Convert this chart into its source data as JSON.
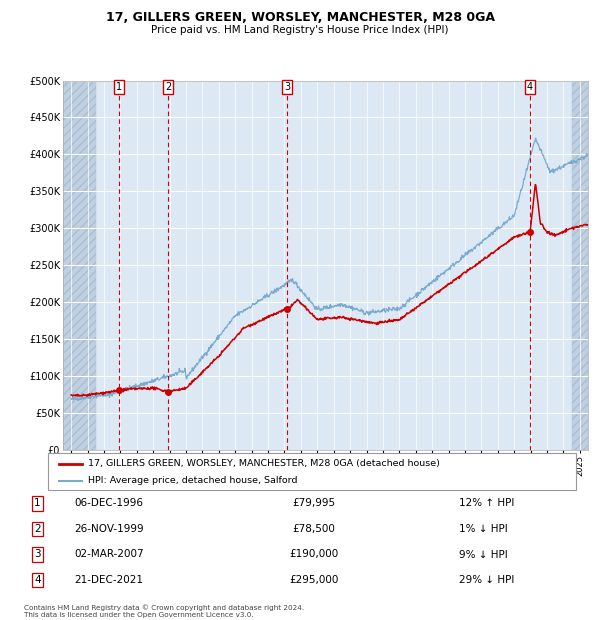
{
  "title": "17, GILLERS GREEN, WORSLEY, MANCHESTER, M28 0GA",
  "subtitle": "Price paid vs. HM Land Registry's House Price Index (HPI)",
  "background_color": "#dce9f5",
  "plot_bg": "#dce9f5",
  "grid_color": "#c8d8ec",
  "hpi_line_color": "#7aabcf",
  "sale_line_color": "#cc0000",
  "sale_dot_color": "#cc0000",
  "vline_color": "#cc0000",
  "ylim": [
    0,
    500000
  ],
  "yticks": [
    0,
    50000,
    100000,
    150000,
    200000,
    250000,
    300000,
    350000,
    400000,
    450000,
    500000
  ],
  "ytick_labels": [
    "£0",
    "£50K",
    "£100K",
    "£150K",
    "£200K",
    "£250K",
    "£300K",
    "£350K",
    "£400K",
    "£450K",
    "£500K"
  ],
  "xmin_year": 1994,
  "xmax_year": 2025,
  "xtick_years": [
    1994,
    1995,
    1996,
    1997,
    1998,
    1999,
    2000,
    2001,
    2002,
    2003,
    2004,
    2005,
    2006,
    2007,
    2008,
    2009,
    2010,
    2011,
    2012,
    2013,
    2014,
    2015,
    2016,
    2017,
    2018,
    2019,
    2020,
    2021,
    2022,
    2023,
    2024,
    2025
  ],
  "sale_transactions": [
    {
      "date": 1996.92,
      "price": 79995,
      "label": "1"
    },
    {
      "date": 1999.9,
      "price": 78500,
      "label": "2"
    },
    {
      "date": 2007.17,
      "price": 190000,
      "label": "3"
    },
    {
      "date": 2021.97,
      "price": 295000,
      "label": "4"
    }
  ],
  "table_rows": [
    {
      "num": "1",
      "date": "06-DEC-1996",
      "price": "£79,995",
      "hpi": "12% ↑ HPI"
    },
    {
      "num": "2",
      "date": "26-NOV-1999",
      "price": "£78,500",
      "hpi": "1% ↓ HPI"
    },
    {
      "num": "3",
      "date": "02-MAR-2007",
      "price": "£190,000",
      "hpi": "9% ↓ HPI"
    },
    {
      "num": "4",
      "date": "21-DEC-2021",
      "price": "£295,000",
      "hpi": "29% ↓ HPI"
    }
  ],
  "legend_sale_label": "17, GILLERS GREEN, WORSLEY, MANCHESTER, M28 0GA (detached house)",
  "legend_hpi_label": "HPI: Average price, detached house, Salford",
  "footnote": "Contains HM Land Registry data © Crown copyright and database right 2024.\nThis data is licensed under the Open Government Licence v3.0."
}
